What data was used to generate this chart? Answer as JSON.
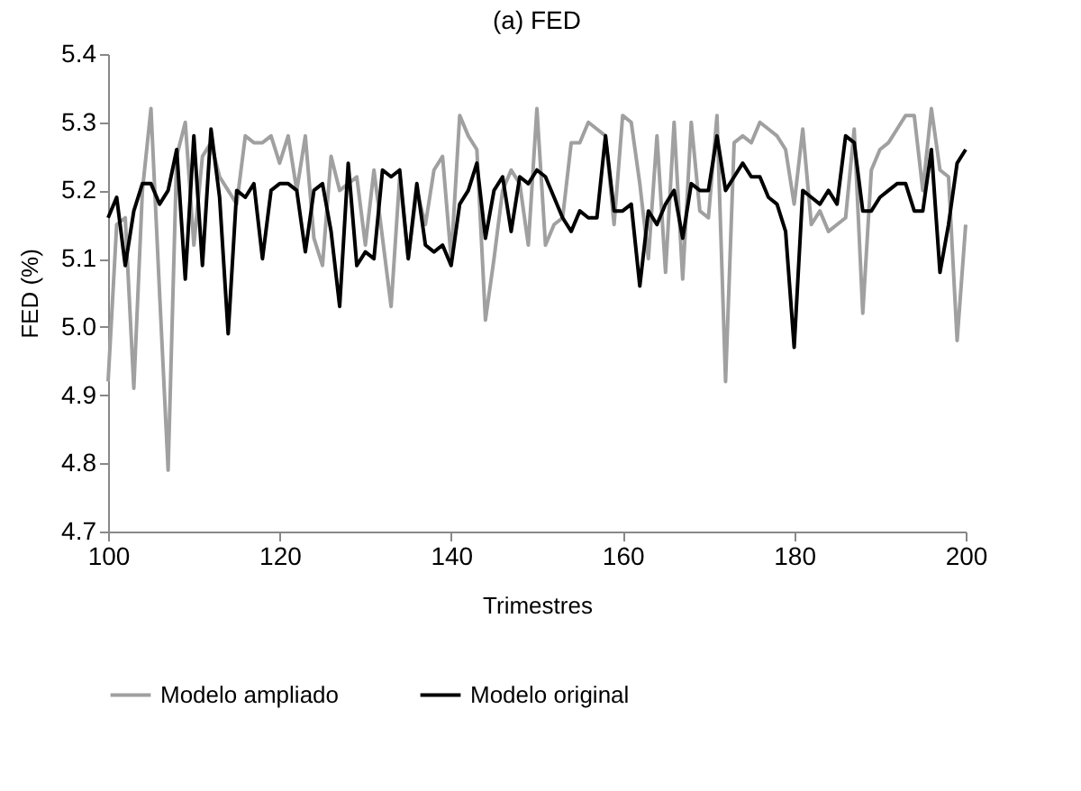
{
  "chart_data": {
    "type": "line",
    "title": "(a) FED",
    "xlabel": "Trimestres",
    "ylabel": "FED (%)",
    "x": [
      100,
      101,
      102,
      103,
      104,
      105,
      106,
      107,
      108,
      109,
      110,
      111,
      112,
      113,
      114,
      115,
      116,
      117,
      118,
      119,
      120,
      121,
      122,
      123,
      124,
      125,
      126,
      127,
      128,
      129,
      130,
      131,
      132,
      133,
      134,
      135,
      136,
      137,
      138,
      139,
      140,
      141,
      142,
      143,
      144,
      145,
      146,
      147,
      148,
      149,
      150,
      151,
      152,
      153,
      154,
      155,
      156,
      157,
      158,
      159,
      160,
      161,
      162,
      163,
      164,
      165,
      166,
      167,
      168,
      169,
      170,
      171,
      172,
      173,
      174,
      175,
      176,
      177,
      178,
      179,
      180,
      181,
      182,
      183,
      184,
      185,
      186,
      187,
      188,
      189,
      190,
      191,
      192,
      193,
      194,
      195,
      196,
      197,
      198,
      199,
      200
    ],
    "series": [
      {
        "name": "Modelo ampliado",
        "color": "#a0a0a0",
        "values": [
          4.92,
          5.15,
          5.16,
          4.91,
          5.2,
          5.32,
          5.05,
          4.79,
          5.25,
          5.3,
          5.12,
          5.25,
          5.27,
          5.22,
          5.2,
          5.18,
          5.28,
          5.27,
          5.27,
          5.28,
          5.24,
          5.28,
          5.2,
          5.28,
          5.13,
          5.09,
          5.25,
          5.2,
          5.21,
          5.22,
          5.12,
          5.23,
          5.13,
          5.03,
          5.22,
          5.1,
          5.2,
          5.15,
          5.23,
          5.25,
          5.1,
          5.31,
          5.28,
          5.26,
          5.01,
          5.1,
          5.2,
          5.23,
          5.21,
          5.12,
          5.32,
          5.12,
          5.15,
          5.16,
          5.27,
          5.27,
          5.3,
          5.29,
          5.28,
          5.15,
          5.31,
          5.3,
          5.21,
          5.1,
          5.28,
          5.08,
          5.3,
          5.07,
          5.3,
          5.17,
          5.16,
          5.31,
          4.92,
          5.27,
          5.28,
          5.27,
          5.3,
          5.29,
          5.28,
          5.26,
          5.18,
          5.29,
          5.15,
          5.17,
          5.14,
          5.15,
          5.16,
          5.29,
          5.02,
          5.23,
          5.26,
          5.27,
          5.29,
          5.31,
          5.31,
          5.2,
          5.32,
          5.23,
          5.22,
          4.98,
          5.15
        ]
      },
      {
        "name": "Modelo original",
        "color": "#000000",
        "values": [
          5.16,
          5.19,
          5.09,
          5.17,
          5.21,
          5.21,
          5.18,
          5.2,
          5.26,
          5.07,
          5.28,
          5.09,
          5.29,
          5.19,
          4.99,
          5.2,
          5.19,
          5.21,
          5.1,
          5.2,
          5.21,
          5.21,
          5.2,
          5.11,
          5.2,
          5.21,
          5.14,
          5.03,
          5.24,
          5.09,
          5.11,
          5.1,
          5.23,
          5.22,
          5.23,
          5.1,
          5.21,
          5.12,
          5.11,
          5.12,
          5.09,
          5.18,
          5.2,
          5.24,
          5.13,
          5.2,
          5.22,
          5.14,
          5.22,
          5.21,
          5.23,
          5.22,
          5.19,
          5.16,
          5.14,
          5.17,
          5.16,
          5.16,
          5.28,
          5.17,
          5.17,
          5.18,
          5.06,
          5.17,
          5.15,
          5.18,
          5.2,
          5.13,
          5.21,
          5.2,
          5.2,
          5.28,
          5.2,
          5.22,
          5.24,
          5.22,
          5.22,
          5.19,
          5.18,
          5.14,
          4.97,
          5.2,
          5.19,
          5.18,
          5.2,
          5.18,
          5.28,
          5.27,
          5.17,
          5.17,
          5.19,
          5.2,
          5.21,
          5.21,
          5.17,
          5.17,
          5.26,
          5.08,
          5.15,
          5.24,
          5.26
        ]
      }
    ],
    "xlim": [
      100,
      200
    ],
    "xticks": [
      100,
      120,
      140,
      160,
      180,
      200
    ],
    "ylim": [
      4.7,
      5.4
    ],
    "yticks": [
      4.7,
      4.8,
      4.9,
      {
        "value": 5,
        "label": "5.0"
      },
      5.1,
      5.2,
      5.3,
      5.4
    ],
    "legend": "bottom",
    "marker": "none",
    "line_style": "solid"
  }
}
